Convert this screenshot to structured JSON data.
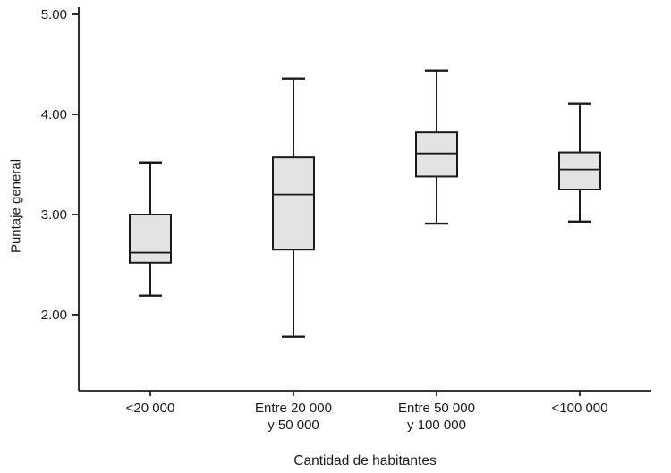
{
  "chart_data": {
    "type": "boxplot",
    "title": "",
    "xlabel": "Cantidad de habitantes",
    "ylabel": "Puntaje general",
    "categories": [
      "<20 000",
      "Entre 20 000 y 50 000",
      "Entre 50 000 y 100 000",
      "<100 000"
    ],
    "category_label_lines": [
      [
        "<20 000"
      ],
      [
        "Entre 20 000",
        "y 50 000"
      ],
      [
        "Entre 50 000",
        "y 100 000"
      ],
      [
        "<100 000"
      ]
    ],
    "series": [
      {
        "category": "<20 000",
        "min": 2.19,
        "q1": 2.52,
        "median": 2.62,
        "q3": 3.0,
        "max": 3.52
      },
      {
        "category": "Entre 20 000 y 50 000",
        "min": 1.78,
        "q1": 2.65,
        "median": 3.2,
        "q3": 3.57,
        "max": 4.36
      },
      {
        "category": "Entre 50 000 y 100 000",
        "min": 2.91,
        "q1": 3.38,
        "median": 3.61,
        "q3": 3.82,
        "max": 4.44
      },
      {
        "category": "<100 000",
        "min": 2.93,
        "q1": 3.25,
        "median": 3.45,
        "q3": 3.62,
        "max": 4.11
      }
    ],
    "yticks": [
      5,
      4,
      3,
      2
    ],
    "ytick_labels": [
      "5.00",
      "4.00",
      "3.00",
      "2.00"
    ],
    "ylim": [
      1.25,
      5.07
    ],
    "grid": false,
    "legend": "none",
    "colors": {
      "box_fill": "#e3e3e3",
      "line": "#1a1a1a",
      "text": "#1a1a1a"
    }
  }
}
